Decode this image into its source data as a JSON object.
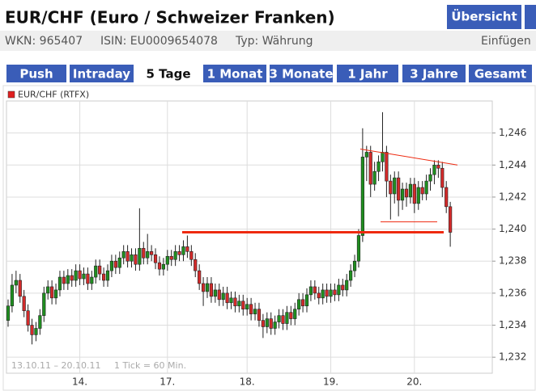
{
  "header": {
    "title": "EUR/CHF (Euro / Schweizer Franken)",
    "button": "Übersicht",
    "wkn": "WKN: 965407",
    "isin": "ISIN: EU0009654078",
    "typ": "Typ: Währung",
    "insert": "Einfügen"
  },
  "tabs": [
    "Push",
    "Intraday",
    "5 Tage",
    "1 Monat",
    "3 Monate",
    "1 Jahr",
    "3 Jahre",
    "Gesamt"
  ],
  "active_tab": "5 Tage",
  "chart_data": {
    "type": "candlestick",
    "legend": "EUR/CHF (RTFX)",
    "legend_color": "#e02020",
    "footer": [
      "13.10.11 – 20.10.11",
      "1 Tick = 60 Min."
    ],
    "up_color": "#1f8f1f",
    "down_color": "#d42a2a",
    "grid": true,
    "ylim": [
      1.231,
      1.248
    ],
    "yticks": [
      {
        "value": 1.232,
        "label": "1,232"
      },
      {
        "value": 1.234,
        "label": "1,234"
      },
      {
        "value": 1.236,
        "label": "1,236"
      },
      {
        "value": 1.238,
        "label": "1,238"
      },
      {
        "value": 1.24,
        "label": "1,240"
      },
      {
        "value": 1.242,
        "label": "1,242"
      },
      {
        "value": 1.244,
        "label": "1,244"
      },
      {
        "value": 1.246,
        "label": "1,246"
      }
    ],
    "categories": [
      null,
      null,
      null,
      null,
      null,
      null,
      null,
      null,
      null,
      null,
      null,
      null,
      null,
      null,
      null,
      null,
      null,
      null,
      "14.",
      null,
      null,
      null,
      null,
      null,
      null,
      null,
      null,
      null,
      null,
      null,
      null,
      null,
      null,
      null,
      null,
      null,
      null,
      null,
      null,
      null,
      "17.",
      null,
      null,
      null,
      null,
      null,
      null,
      null,
      null,
      null,
      null,
      null,
      null,
      null,
      null,
      null,
      null,
      null,
      null,
      null,
      "18.",
      null,
      null,
      null,
      null,
      null,
      null,
      null,
      null,
      null,
      null,
      null,
      null,
      null,
      null,
      null,
      null,
      null,
      null,
      null,
      null,
      "19.",
      null,
      null,
      null,
      null,
      null,
      null,
      null,
      null,
      null,
      null,
      null,
      null,
      null,
      null,
      null,
      null,
      null,
      null,
      null,
      null,
      "20.",
      null,
      null,
      null,
      null,
      null,
      null,
      null,
      null,
      null
    ],
    "open": [
      1.2343,
      1.2352,
      1.2365,
      1.2368,
      1.2358,
      1.2349,
      1.234,
      1.2334,
      1.2338,
      1.2346,
      1.236,
      1.2364,
      1.2357,
      1.2362,
      1.237,
      1.2366,
      1.2371,
      1.2368,
      1.2374,
      1.2369,
      1.2372,
      1.2366,
      1.237,
      1.2377,
      1.2372,
      1.2368,
      1.2374,
      1.238,
      1.2376,
      1.2382,
      1.2386,
      1.238,
      1.2384,
      1.2378,
      1.2388,
      1.2382,
      1.2386,
      1.2384,
      1.2379,
      1.2375,
      1.2378,
      1.2383,
      1.2381,
      1.2386,
      1.2384,
      1.2389,
      1.2386,
      1.2381,
      1.2374,
      1.2366,
      1.2361,
      1.2366,
      1.2358,
      1.2362,
      1.2356,
      1.236,
      1.2354,
      1.2357,
      1.2352,
      1.2355,
      1.235,
      1.2353,
      1.2347,
      1.235,
      1.2343,
      1.2339,
      1.2344,
      1.2338,
      1.2342,
      1.2346,
      1.2341,
      1.2348,
      1.2344,
      1.235,
      1.2356,
      1.2352,
      1.2359,
      1.2364,
      1.236,
      1.2357,
      1.2362,
      1.2358,
      1.2362,
      1.2359,
      1.2365,
      1.2362,
      1.2368,
      1.2374,
      1.238,
      1.2396,
      1.2445,
      1.2448,
      1.2428,
      1.2436,
      1.2442,
      1.2448,
      1.243,
      1.2422,
      1.2432,
      1.2418,
      1.2425,
      1.242,
      1.2428,
      1.2416,
      1.2426,
      1.2422,
      1.243,
      1.2434,
      1.244,
      1.2438,
      1.2426,
      1.2414
    ],
    "high": [
      1.2356,
      1.2372,
      1.2374,
      1.2372,
      1.2362,
      1.2353,
      1.2344,
      1.2342,
      1.235,
      1.2364,
      1.2368,
      1.2368,
      1.2366,
      1.2374,
      1.2374,
      1.2375,
      1.2375,
      1.2378,
      1.2378,
      1.2376,
      1.2376,
      1.2374,
      1.2381,
      1.2381,
      1.2376,
      1.2378,
      1.2384,
      1.2384,
      1.2386,
      1.239,
      1.239,
      1.2388,
      1.2388,
      1.2413,
      1.2392,
      1.2397,
      1.239,
      1.2388,
      1.2383,
      1.2382,
      1.2387,
      1.2387,
      1.239,
      1.239,
      1.2393,
      1.2396,
      1.239,
      1.2385,
      1.2378,
      1.237,
      1.237,
      1.237,
      1.2366,
      1.2366,
      1.2364,
      1.2364,
      1.2361,
      1.2361,
      1.2359,
      1.2359,
      1.2357,
      1.2357,
      1.2354,
      1.2354,
      1.2347,
      1.2348,
      1.2348,
      1.2346,
      1.235,
      1.235,
      1.2352,
      1.2352,
      1.2354,
      1.236,
      1.236,
      1.2363,
      1.2368,
      1.2368,
      1.2364,
      1.2366,
      1.2366,
      1.2366,
      1.2366,
      1.2369,
      1.2369,
      1.2372,
      1.2378,
      1.2384,
      1.24,
      1.2463,
      1.2452,
      1.2452,
      1.2442,
      1.2446,
      1.2473,
      1.2452,
      1.2434,
      1.2436,
      1.2436,
      1.2429,
      1.2429,
      1.2432,
      1.2432,
      1.243,
      1.243,
      1.2434,
      1.2438,
      1.2443,
      1.2443,
      1.2442,
      1.243,
      1.2417
    ],
    "low": [
      1.2339,
      1.2348,
      1.236,
      1.2354,
      1.2345,
      1.2336,
      1.2328,
      1.233,
      1.2334,
      1.2342,
      1.2356,
      1.2353,
      1.2353,
      1.2358,
      1.2362,
      1.2362,
      1.2364,
      1.2364,
      1.2365,
      1.2365,
      1.2362,
      1.2362,
      1.2366,
      1.2368,
      1.2364,
      1.2364,
      1.237,
      1.2372,
      1.2372,
      1.2378,
      1.2376,
      1.2376,
      1.2374,
      1.2374,
      1.2378,
      1.2378,
      1.238,
      1.2375,
      1.2371,
      1.2371,
      1.2374,
      1.2377,
      1.2377,
      1.238,
      1.238,
      1.2382,
      1.2377,
      1.237,
      1.2362,
      1.2352,
      1.2357,
      1.2354,
      1.2354,
      1.2352,
      1.2352,
      1.235,
      1.235,
      1.2348,
      1.2348,
      1.2346,
      1.2346,
      1.2343,
      1.2343,
      1.2339,
      1.2332,
      1.2335,
      1.2334,
      1.2334,
      1.2338,
      1.2337,
      1.2337,
      1.234,
      1.234,
      1.2346,
      1.2348,
      1.2348,
      1.2355,
      1.2356,
      1.2353,
      1.2353,
      1.2354,
      1.2354,
      1.2355,
      1.2355,
      1.2358,
      1.2358,
      1.2364,
      1.237,
      1.2376,
      1.2392,
      1.243,
      1.242,
      1.2424,
      1.243,
      1.2436,
      1.242,
      1.2406,
      1.2416,
      1.2408,
      1.2412,
      1.2414,
      1.2416,
      1.241,
      1.2412,
      1.2418,
      1.2418,
      1.2424,
      1.2428,
      1.2432,
      1.242,
      1.241,
      1.2389
    ],
    "close": [
      1.2352,
      1.2365,
      1.2368,
      1.2358,
      1.2349,
      1.234,
      1.2334,
      1.2338,
      1.2346,
      1.236,
      1.2364,
      1.2357,
      1.2362,
      1.237,
      1.2366,
      1.2371,
      1.2368,
      1.2374,
      1.2369,
      1.2372,
      1.2366,
      1.237,
      1.2377,
      1.2372,
      1.2368,
      1.2374,
      1.238,
      1.2376,
      1.2382,
      1.2386,
      1.238,
      1.2384,
      1.2378,
      1.2388,
      1.2382,
      1.2386,
      1.2384,
      1.2379,
      1.2375,
      1.2378,
      1.2383,
      1.2381,
      1.2386,
      1.2384,
      1.2389,
      1.2386,
      1.2381,
      1.2374,
      1.2366,
      1.2361,
      1.2366,
      1.2358,
      1.2362,
      1.2356,
      1.236,
      1.2354,
      1.2357,
      1.2352,
      1.2355,
      1.235,
      1.2353,
      1.2347,
      1.235,
      1.2343,
      1.2339,
      1.2344,
      1.2338,
      1.2342,
      1.2346,
      1.2341,
      1.2348,
      1.2344,
      1.235,
      1.2356,
      1.2352,
      1.2359,
      1.2364,
      1.236,
      1.2357,
      1.2362,
      1.2358,
      1.2362,
      1.2359,
      1.2365,
      1.2362,
      1.2368,
      1.2374,
      1.238,
      1.2396,
      1.2445,
      1.2448,
      1.2428,
      1.2436,
      1.2442,
      1.2448,
      1.243,
      1.2422,
      1.2432,
      1.2418,
      1.2425,
      1.242,
      1.2428,
      1.2416,
      1.2426,
      1.2422,
      1.243,
      1.2434,
      1.244,
      1.2438,
      1.2426,
      1.2414,
      1.2398
    ],
    "trendlines": [
      {
        "color": "#ee2a10",
        "width": 3,
        "values": [
          1.2398,
          1.2398
        ]
      },
      {
        "color": "#ee2a10",
        "width": 1,
        "values": [
          1.245,
          1.244
        ]
      },
      {
        "color": "#ee2a10",
        "width": 1,
        "values": [
          1.24045,
          1.24045
        ]
      }
    ]
  }
}
